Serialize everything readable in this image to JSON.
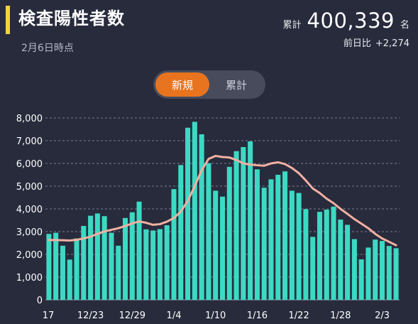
{
  "header": {
    "title": "検査陽性者数",
    "as_of": "2月6日時点",
    "total_label": "累計",
    "total_value": "400,339",
    "total_unit": "名",
    "diff_label": "前日比",
    "diff_value": "+2,274"
  },
  "toggle": {
    "options": [
      "新規",
      "累計"
    ],
    "selected": "新規"
  },
  "colors": {
    "background": "#282b3c",
    "accent": "#f0d43a",
    "bar": "#3cd9c3",
    "line": "#f2b0a2",
    "toggle_active": "#e8741f"
  },
  "chart_data": {
    "type": "bar",
    "title": "",
    "xlabel": "",
    "ylabel": "",
    "ylim": [
      0,
      8000
    ],
    "y_ticks": [
      "0",
      "1,000",
      "2,000",
      "3,000",
      "4,000",
      "5,000",
      "6,000",
      "7,000",
      "8,000"
    ],
    "x_ticks": [
      {
        "index": 0,
        "label": "17"
      },
      {
        "index": 6,
        "label": "12/23"
      },
      {
        "index": 12,
        "label": "12/29"
      },
      {
        "index": 18,
        "label": "1/4"
      },
      {
        "index": 24,
        "label": "1/10"
      },
      {
        "index": 30,
        "label": "1/16"
      },
      {
        "index": 36,
        "label": "1/22"
      },
      {
        "index": 42,
        "label": "1/28"
      },
      {
        "index": 48,
        "label": "2/3"
      }
    ],
    "series": [
      {
        "type": "bar",
        "values": [
          2900,
          2950,
          2380,
          1770,
          2700,
          3250,
          3700,
          3800,
          3680,
          2950,
          2380,
          3600,
          3850,
          4320,
          3100,
          3050,
          3110,
          3280,
          4870,
          5930,
          7570,
          7830,
          7280,
          6010,
          4800,
          4540,
          5850,
          6540,
          6720,
          6970,
          5740,
          4930,
          5300,
          5500,
          5650,
          4800,
          4700,
          3990,
          2770,
          3870,
          3970,
          4100,
          3530,
          3300,
          2670,
          1780,
          2300,
          2650,
          2590,
          2370,
          2270
        ]
      },
      {
        "type": "line",
        "values": [
          2630,
          2630,
          2620,
          2610,
          2640,
          2700,
          2780,
          2900,
          3010,
          3080,
          3150,
          3250,
          3360,
          3450,
          3390,
          3300,
          3330,
          3440,
          3600,
          3880,
          4350,
          5000,
          5700,
          6200,
          6330,
          6280,
          6260,
          6150,
          6000,
          5950,
          5920,
          5900,
          6000,
          6050,
          5970,
          5800,
          5570,
          5250,
          4900,
          4700,
          4450,
          4250,
          4000,
          3780,
          3550,
          3350,
          3150,
          2900,
          2700,
          2550,
          2400
        ]
      }
    ]
  }
}
